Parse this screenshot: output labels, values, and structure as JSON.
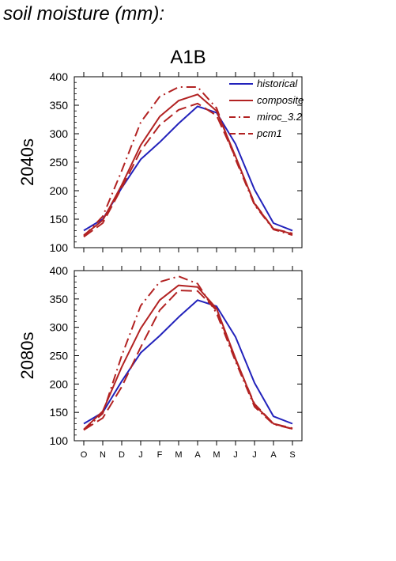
{
  "title": "soil moisture (mm):",
  "colors": {
    "historical": "#2222bb",
    "projection": "#b22222",
    "axis": "#000000"
  },
  "chart_data": [
    {
      "type": "line",
      "title": "A1B",
      "ylabel": "2040s",
      "xlabel": "",
      "categories": [
        "O",
        "N",
        "D",
        "J",
        "F",
        "M",
        "A",
        "M",
        "J",
        "J",
        "A",
        "S"
      ],
      "ylim": [
        100,
        400
      ],
      "yticks": [
        100,
        150,
        200,
        250,
        300,
        350,
        400
      ],
      "grid": false,
      "legend": "top-right",
      "series": [
        {
          "name": "historical",
          "style": "solid",
          "color": "#2222bb",
          "values": [
            130,
            150,
            205,
            255,
            285,
            318,
            348,
            337,
            282,
            202,
            143,
            130
          ]
        },
        {
          "name": "composite",
          "style": "solid",
          "color": "#b22222",
          "values": [
            122,
            148,
            210,
            280,
            330,
            358,
            369,
            340,
            260,
            177,
            133,
            124
          ]
        },
        {
          "name": "miroc_3.2",
          "style": "dashdot",
          "color": "#b22222",
          "values": [
            120,
            155,
            235,
            320,
            365,
            382,
            382,
            345,
            255,
            175,
            132,
            122
          ]
        },
        {
          "name": "pcm1",
          "style": "dashed",
          "color": "#b22222",
          "values": [
            119,
            143,
            205,
            270,
            315,
            342,
            353,
            332,
            258,
            178,
            133,
            125
          ]
        }
      ]
    },
    {
      "type": "line",
      "title": "",
      "ylabel": "2080s",
      "xlabel": "",
      "categories": [
        "O",
        "N",
        "D",
        "J",
        "F",
        "M",
        "A",
        "M",
        "J",
        "J",
        "A",
        "S"
      ],
      "ylim": [
        100,
        400
      ],
      "yticks": [
        100,
        150,
        200,
        250,
        300,
        350,
        400
      ],
      "grid": false,
      "series": [
        {
          "name": "historical",
          "style": "solid",
          "color": "#2222bb",
          "values": [
            130,
            150,
            205,
            255,
            285,
            318,
            348,
            337,
            283,
            202,
            143,
            130
          ]
        },
        {
          "name": "composite",
          "style": "solid",
          "color": "#b22222",
          "values": [
            120,
            152,
            230,
            298,
            348,
            374,
            371,
            333,
            245,
            163,
            130,
            121
          ]
        },
        {
          "name": "miroc_3.2",
          "style": "dashdot",
          "color": "#b22222",
          "values": [
            119,
            148,
            250,
            338,
            380,
            390,
            377,
            325,
            240,
            160,
            129,
            121
          ]
        },
        {
          "name": "pcm1",
          "style": "dashed",
          "color": "#b22222",
          "values": [
            119,
            140,
            195,
            265,
            330,
            365,
            364,
            330,
            243,
            165,
            130,
            122
          ]
        }
      ]
    }
  ]
}
